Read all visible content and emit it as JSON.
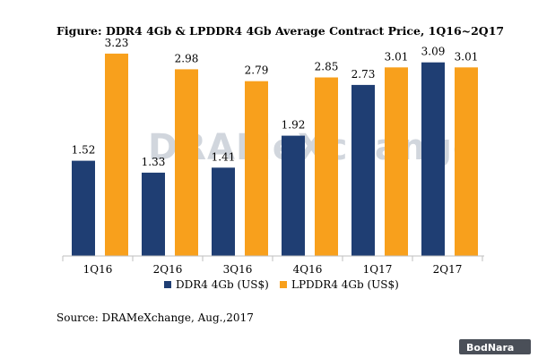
{
  "chart_data": {
    "type": "bar",
    "title": "Figure: DDR4 4Gb & LPDDR4 4Gb Average Contract Price, 1Q16~2Q17",
    "categories": [
      "1Q16",
      "2Q16",
      "3Q16",
      "4Q16",
      "1Q17",
      "2Q17"
    ],
    "series": [
      {
        "name": "DDR4 4Gb (US$)",
        "color": "#1f3e73",
        "values": [
          1.52,
          1.33,
          1.41,
          1.92,
          2.73,
          3.09
        ]
      },
      {
        "name": "LPDDR4 4Gb (US$)",
        "color": "#f8a01c",
        "values": [
          3.23,
          2.98,
          2.79,
          2.85,
          3.01,
          3.01
        ]
      }
    ],
    "value_labels": [
      [
        "1.52",
        "1.33",
        "1.41",
        "1.92",
        "2.73",
        "3.09"
      ],
      [
        "3.23",
        "2.98",
        "2.79",
        "2.85",
        "3.01",
        "3.01"
      ]
    ],
    "ylim": [
      0,
      3.5
    ],
    "xlabel": "",
    "ylabel": "",
    "grid": false,
    "legend": "bottom-center"
  },
  "source": "Source: DRAMeXchange, Aug.,2017",
  "watermark": "DRAMeXchange",
  "logo": "BodNara"
}
